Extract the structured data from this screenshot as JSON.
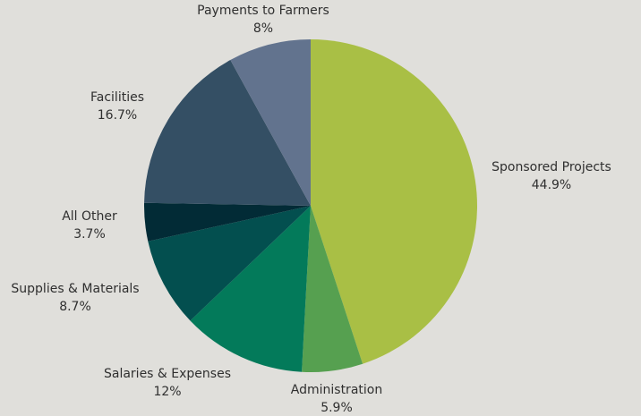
{
  "chart_data": {
    "type": "pie",
    "categories": [
      "Sponsored Projects",
      "Administration",
      "Salaries & Expenses",
      "Supplies & Materials",
      "All Other",
      "Facilities",
      "Payments to Farmers"
    ],
    "values": [
      44.9,
      5.9,
      12,
      8.7,
      3.7,
      16.7,
      8
    ],
    "value_labels": [
      "44.9%",
      "5.9%",
      "12%",
      "8.7%",
      "3.7%",
      "16.7%",
      "8%"
    ],
    "colors": [
      "#a9bf45",
      "#56a050",
      "#037a5a",
      "#034f4f",
      "#022b36",
      "#344f64",
      "#62738e"
    ]
  }
}
